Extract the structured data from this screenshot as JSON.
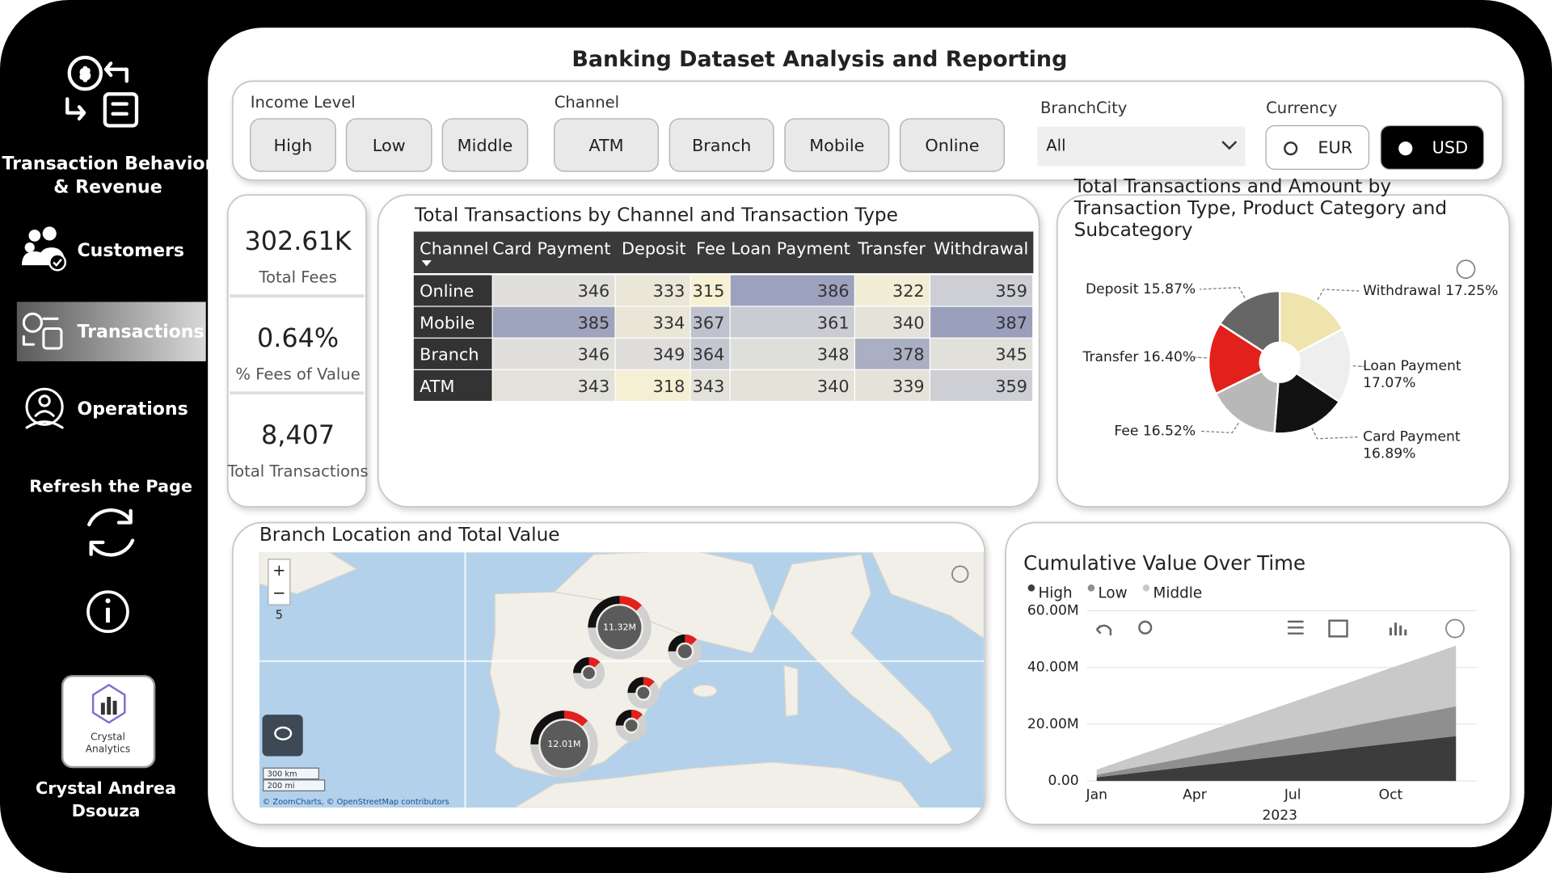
{
  "sidebar": {
    "title": [
      "Transaction Behavior",
      "& Revenue"
    ],
    "nav": [
      "Customers",
      "Transactions",
      "Operations"
    ],
    "active_nav": 1,
    "refresh": "Refresh the Page",
    "logo": [
      "Crystal",
      "Analytics"
    ],
    "author": [
      "Crystal Andrea",
      "Dsouza"
    ]
  },
  "header": {
    "title": "Banking Dataset Analysis and Reporting"
  },
  "slicers": {
    "income_level": {
      "label": "Income Level",
      "options": [
        "High",
        "Low",
        "Middle"
      ]
    },
    "channel": {
      "label": "Channel",
      "options": [
        "ATM",
        "Branch",
        "Mobile",
        "Online"
      ]
    },
    "branch_city": {
      "label": "BranchCity",
      "value": "All"
    },
    "currency": {
      "label": "Currency",
      "options": [
        "EUR",
        "USD"
      ],
      "selected": 1
    }
  },
  "kpis": [
    {
      "value": "302.61K",
      "label": "Total Fees"
    },
    {
      "value": "0.64%",
      "label": "% Fees of Value"
    },
    {
      "value": "8,407",
      "label": "Total Transactions"
    }
  ],
  "table": {
    "title": "Total Transactions by Channel and Transaction Type",
    "columns": [
      "Channel",
      "Card Payment",
      "Deposit",
      "Fee",
      "Loan Payment",
      "Transfer",
      "Withdrawal"
    ],
    "rows": [
      [
        "Online",
        346,
        333,
        315,
        386,
        322,
        359
      ],
      [
        "Mobile",
        385,
        334,
        367,
        361,
        340,
        387
      ],
      [
        "Branch",
        346,
        349,
        364,
        348,
        378,
        345
      ],
      [
        "ATM",
        343,
        318,
        343,
        340,
        339,
        359
      ]
    ]
  },
  "map": {
    "title": "Branch Location and Total Value",
    "markers": [
      "11.32M",
      "12.01M"
    ],
    "zoom_controls": [
      "+",
      "−"
    ],
    "zoom_level": 5,
    "scale": [
      "300 km",
      "200 mi"
    ],
    "attribution": "© ZoomCharts, © OpenStreetMap contributors"
  },
  "chart_data": [
    {
      "type": "pie",
      "title": [
        "Total Transactions and Amount by",
        "Transaction Type, Product Category and",
        "Subcategory"
      ],
      "categories": [
        "Withdrawal",
        "Loan Payment",
        "Card Payment",
        "Fee",
        "Transfer",
        "Deposit"
      ],
      "values": [
        17.25,
        17.07,
        16.89,
        16.52,
        16.4,
        15.87
      ],
      "value_labels": [
        "17.25%",
        "17.07%",
        "16.89%",
        "16.52%",
        "16.40%",
        "15.87%"
      ],
      "colors": [
        "#efe3ae",
        "#eeeeee",
        "#121212",
        "#b8b8b8",
        "#e2201c",
        "#666666"
      ],
      "donut": true
    },
    {
      "type": "area",
      "stacked": true,
      "title": "Cumulative Value Over Time",
      "categories": [
        "Jan",
        null,
        null,
        "Apr",
        null,
        null,
        "Jul",
        null,
        null,
        "Oct",
        null,
        null
      ],
      "x_label": "2023",
      "series": [
        {
          "name": "High",
          "color": "#3c3c3c",
          "values": [
            1300000,
            2600000,
            3900000,
            5300000,
            6600000,
            7900000,
            9200000,
            10500000,
            11900000,
            13200000,
            14500000,
            15800000
          ]
        },
        {
          "name": "Low",
          "color": "#8f8f8f",
          "values": [
            900000,
            1800000,
            2600000,
            3500000,
            4400000,
            5300000,
            6100000,
            7000000,
            7900000,
            8800000,
            9600000,
            10500000
          ]
        },
        {
          "name": "Middle",
          "color": "#c9c9c9",
          "values": [
            1800000,
            3600000,
            5400000,
            7100000,
            8900000,
            10700000,
            12500000,
            14300000,
            16000000,
            17800000,
            19600000,
            21400000
          ]
        }
      ],
      "ylim": [
        0,
        60000000
      ],
      "yticks": [
        {
          "value": 0,
          "label": "0.00"
        },
        {
          "value": 20000000,
          "label": "20.00M"
        },
        {
          "value": 40000000,
          "label": "40.00M"
        },
        {
          "value": 60000000,
          "label": "60.00M"
        }
      ],
      "grid": true
    }
  ]
}
